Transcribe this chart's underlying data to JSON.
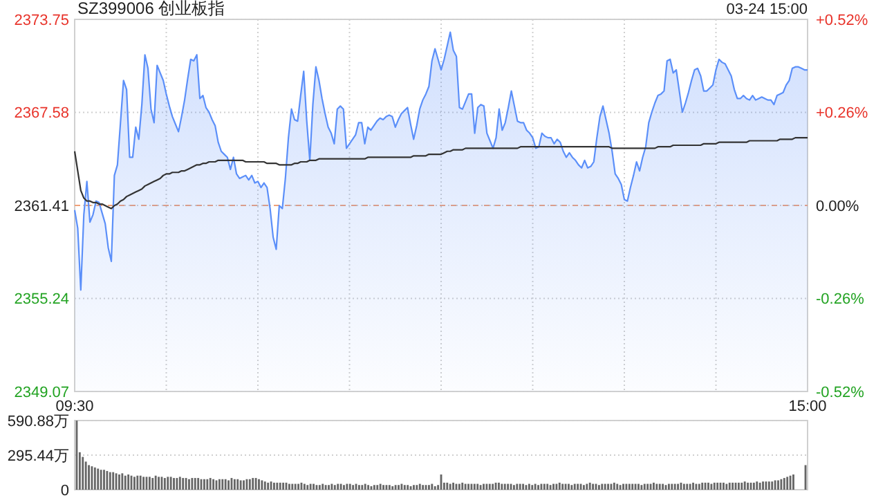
{
  "chart_data": [
    {
      "type": "area",
      "title": "SZ399006 创业板指",
      "annotations": [
        "03-24 15:00"
      ],
      "categories": [
        "09:30",
        null,
        null,
        null,
        null,
        null,
        null,
        null,
        null,
        null,
        null,
        null,
        null,
        null,
        null,
        null,
        null,
        null,
        null,
        null,
        null,
        null,
        null,
        null,
        null,
        null,
        null,
        null,
        null,
        null,
        null,
        null,
        null,
        null,
        null,
        null,
        null,
        null,
        null,
        null,
        null,
        null,
        null,
        null,
        null,
        null,
        null,
        null,
        null,
        null,
        null,
        null,
        null,
        null,
        null,
        null,
        null,
        null,
        null,
        null,
        null,
        null,
        null,
        null,
        null,
        null,
        null,
        null,
        null,
        null,
        null,
        null,
        null,
        null,
        null,
        null,
        null,
        null,
        null,
        null,
        null,
        null,
        null,
        null,
        null,
        null,
        null,
        null,
        null,
        null,
        null,
        null,
        null,
        null,
        null,
        null,
        null,
        null,
        null,
        null,
        null,
        null,
        null,
        null,
        null,
        null,
        null,
        null,
        null,
        null,
        null,
        null,
        null,
        null,
        null,
        null,
        null,
        null,
        null,
        null,
        null,
        null,
        null,
        null,
        null,
        null,
        null,
        null,
        null,
        null,
        null,
        null,
        null,
        null,
        null,
        null,
        null,
        null,
        null,
        null,
        null,
        null,
        null,
        null,
        null,
        null,
        null,
        null,
        null,
        null,
        null,
        null,
        null,
        null,
        null,
        null,
        null,
        null,
        null,
        null,
        null,
        null,
        null,
        null,
        null,
        null,
        null,
        null,
        null,
        null,
        null,
        null,
        null,
        null,
        null,
        null,
        null,
        null,
        null,
        null,
        null,
        null,
        null,
        null,
        null,
        null,
        null,
        null,
        null,
        null,
        null,
        null,
        null,
        null,
        null,
        null,
        null,
        null,
        null,
        null,
        null,
        null,
        null,
        null,
        null,
        null,
        null,
        null,
        null,
        null,
        null,
        null,
        null,
        null,
        null,
        null,
        null,
        null,
        null,
        null,
        null,
        null,
        null,
        null,
        null,
        null,
        null,
        null,
        null,
        null,
        null,
        null,
        null,
        null,
        null,
        null,
        null,
        null,
        null,
        null,
        "15:00"
      ],
      "ylim": [
        2349.07,
        2373.75
      ],
      "yticks": [
        2349.07,
        2355.24,
        2361.41,
        2367.58,
        2373.75
      ],
      "y2lim": [
        -0.52,
        0.52
      ],
      "y2ticks": [
        {
          "value": -0.52,
          "label": "-0.52%"
        },
        {
          "value": -0.26,
          "label": "-0.26%"
        },
        {
          "value": 0,
          "label": "0.00%"
        },
        {
          "value": 0.26,
          "label": "+0.26%"
        },
        {
          "value": 0.52,
          "label": "+0.52%"
        }
      ],
      "grid": true,
      "ref_lines": [
        {
          "axis": "y",
          "value": 2361.41,
          "color": "#f0a078",
          "line_style": "dashed"
        }
      ],
      "series": [
        {
          "type": "area",
          "color": "#5b8ff9",
          "values": [
            2361.1,
            2359.9,
            2355.8,
            2360.8,
            2363.0,
            2360.3,
            2360.8,
            2361.7,
            2361.6,
            2360.9,
            2360.2,
            2358.6,
            2357.7,
            2363.4,
            2364.1,
            2366.9,
            2369.7,
            2369.1,
            2364.6,
            2364.6,
            2366.6,
            2365.8,
            2368.1,
            2371.4,
            2370.5,
            2367.8,
            2366.9,
            2370.7,
            2370.2,
            2369.7,
            2368.8,
            2368.0,
            2367.3,
            2366.8,
            2366.3,
            2367.3,
            2368.4,
            2369.8,
            2371.1,
            2371.0,
            2371.4,
            2368.5,
            2368.7,
            2367.9,
            2367.6,
            2367.1,
            2366.7,
            2365.6,
            2365.0,
            2364.8,
            2364.6,
            2363.8,
            2364.6,
            2363.5,
            2363.2,
            2363.3,
            2363.4,
            2363.1,
            2363.4,
            2362.9,
            2363.0,
            2362.6,
            2362.9,
            2362.6,
            2361.2,
            2359.3,
            2358.5,
            2361.4,
            2361.2,
            2363.2,
            2365.9,
            2367.8,
            2367.1,
            2367.0,
            2368.7,
            2370.3,
            2367.0,
            2364.4,
            2368.1,
            2370.6,
            2369.7,
            2368.5,
            2367.5,
            2366.6,
            2366.2,
            2365.5,
            2367.8,
            2368.0,
            2367.8,
            2365.2,
            2365.5,
            2365.8,
            2366.1,
            2366.9,
            2366.9,
            2365.5,
            2366.6,
            2366.4,
            2366.7,
            2367.0,
            2367.2,
            2367.1,
            2367.3,
            2367.4,
            2367.3,
            2366.6,
            2367.1,
            2367.5,
            2367.7,
            2367.9,
            2366.8,
            2365.8,
            2366.7,
            2367.8,
            2368.4,
            2368.8,
            2369.3,
            2371.0,
            2371.8,
            2371.1,
            2370.4,
            2371.1,
            2372.0,
            2372.9,
            2371.7,
            2371.3,
            2367.9,
            2367.8,
            2368.3,
            2368.8,
            2368.8,
            2366.2,
            2367.9,
            2368.1,
            2368.0,
            2366.2,
            2365.7,
            2365.2,
            2365.9,
            2367.8,
            2366.4,
            2366.9,
            2367.9,
            2369.0,
            2368.0,
            2367.0,
            2366.9,
            2366.9,
            2366.4,
            2366.2,
            2365.9,
            2365.2,
            2365.3,
            2366.2,
            2366.0,
            2365.9,
            2365.9,
            2365.5,
            2365.8,
            2365.6,
            2365.0,
            2364.6,
            2364.9,
            2364.6,
            2364.4,
            2364.1,
            2363.9,
            2364.4,
            2363.9,
            2364.0,
            2364.3,
            2365.9,
            2367.3,
            2368.0,
            2367.1,
            2366.2,
            2365.0,
            2363.5,
            2363.2,
            2362.8,
            2361.8,
            2361.7,
            2362.6,
            2363.4,
            2364.3,
            2363.7,
            2364.6,
            2365.3,
            2366.9,
            2367.6,
            2368.2,
            2368.7,
            2368.8,
            2369.0,
            2371.0,
            2371.1,
            2370.2,
            2370.4,
            2369.0,
            2367.6,
            2368.2,
            2368.9,
            2369.7,
            2370.4,
            2370.5,
            2370.0,
            2369.0,
            2369.0,
            2369.2,
            2369.4,
            2370.4,
            2371.1,
            2370.9,
            2370.8,
            2370.4,
            2370.0,
            2369.1,
            2368.5,
            2368.5,
            2368.7,
            2368.5,
            2368.4,
            2368.7,
            2368.4,
            2368.5,
            2368.6,
            2368.5,
            2368.4,
            2368.4,
            2368.1,
            2368.7,
            2368.8,
            2368.9,
            2369.4,
            2369.7,
            2370.5,
            2370.6,
            2370.6,
            2370.5,
            2370.4,
            2370.4
          ]
        },
        {
          "type": "line",
          "color": "#333333",
          "values": [
            2365.0,
            2363.7,
            2362.4,
            2361.9,
            2361.7,
            2361.7,
            2361.6,
            2361.6,
            2361.5,
            2361.5,
            2361.4,
            2361.3,
            2361.2,
            2361.4,
            2361.5,
            2361.7,
            2361.8,
            2362.0,
            2362.1,
            2362.2,
            2362.3,
            2362.4,
            2362.5,
            2362.7,
            2362.8,
            2362.9,
            2363.0,
            2363.1,
            2363.2,
            2363.4,
            2363.5,
            2363.5,
            2363.6,
            2363.6,
            2363.6,
            2363.7,
            2363.7,
            2363.8,
            2363.9,
            2364.0,
            2364.1,
            2364.1,
            2364.2,
            2364.2,
            2364.3,
            2364.3,
            2364.3,
            2364.4,
            2364.4,
            2364.4,
            2364.4,
            2364.4,
            2364.4,
            2364.4,
            2364.4,
            2364.4,
            2364.3,
            2364.3,
            2364.3,
            2364.3,
            2364.3,
            2364.3,
            2364.3,
            2364.2,
            2364.2,
            2364.2,
            2364.2,
            2364.1,
            2364.1,
            2364.1,
            2364.1,
            2364.1,
            2364.2,
            2364.2,
            2364.3,
            2364.3,
            2364.3,
            2364.4,
            2364.4,
            2364.4,
            2364.5,
            2364.5,
            2364.5,
            2364.5,
            2364.5,
            2364.5,
            2364.5,
            2364.5,
            2364.5,
            2364.5,
            2364.5,
            2364.5,
            2364.5,
            2364.5,
            2364.5,
            2364.5,
            2364.6,
            2364.6,
            2364.6,
            2364.6,
            2364.6,
            2364.6,
            2364.6,
            2364.6,
            2364.6,
            2364.6,
            2364.6,
            2364.6,
            2364.6,
            2364.6,
            2364.6,
            2364.7,
            2364.7,
            2364.7,
            2364.7,
            2364.7,
            2364.8,
            2364.8,
            2364.8,
            2364.8,
            2364.8,
            2364.9,
            2365.0,
            2365.0,
            2365.1,
            2365.1,
            2365.1,
            2365.1,
            2365.2,
            2365.2,
            2365.2,
            2365.2,
            2365.2,
            2365.2,
            2365.2,
            2365.2,
            2365.2,
            2365.2,
            2365.2,
            2365.2,
            2365.2,
            2365.2,
            2365.2,
            2365.2,
            2365.2,
            2365.2,
            2365.3,
            2365.3,
            2365.3,
            2365.3,
            2365.3,
            2365.3,
            2365.3,
            2365.3,
            2365.3,
            2365.3,
            2365.3,
            2365.3,
            2365.3,
            2365.3,
            2365.3,
            2365.3,
            2365.3,
            2365.3,
            2365.3,
            2365.3,
            2365.3,
            2365.3,
            2365.3,
            2365.3,
            2365.3,
            2365.3,
            2365.3,
            2365.3,
            2365.3,
            2365.3,
            2365.2,
            2365.2,
            2365.2,
            2365.2,
            2365.2,
            2365.2,
            2365.2,
            2365.2,
            2365.2,
            2365.2,
            2365.2,
            2365.2,
            2365.2,
            2365.2,
            2365.2,
            2365.3,
            2365.3,
            2365.3,
            2365.3,
            2365.3,
            2365.4,
            2365.4,
            2365.4,
            2365.4,
            2365.4,
            2365.4,
            2365.4,
            2365.4,
            2365.4,
            2365.4,
            2365.5,
            2365.5,
            2365.5,
            2365.5,
            2365.5,
            2365.6,
            2365.6,
            2365.6,
            2365.6,
            2365.6,
            2365.6,
            2365.6,
            2365.6,
            2365.6,
            2365.6,
            2365.7,
            2365.7,
            2365.7,
            2365.7,
            2365.7,
            2365.7,
            2365.7,
            2365.7,
            2365.7,
            2365.7,
            2365.8,
            2365.8,
            2365.8,
            2365.8,
            2365.8,
            2365.9,
            2365.9,
            2365.9,
            2365.9,
            2365.9
          ]
        }
      ]
    },
    {
      "type": "bar",
      "color": "#666666",
      "tick_labels": "y",
      "grid": "y",
      "ylim": [
        0,
        590.88
      ],
      "yticks": [
        0,
        {
          "value": 295.44,
          "label": "295.44万"
        },
        {
          "value": 590.88,
          "label": "590.88万"
        }
      ],
      "categories": [
        null,
        null,
        null,
        null,
        null,
        null,
        null,
        null,
        null,
        null,
        null,
        null,
        null,
        null,
        null,
        null,
        null,
        null,
        null,
        null,
        null,
        null,
        null,
        null,
        null,
        null,
        null,
        null,
        null,
        null,
        null,
        null,
        null,
        null,
        null,
        null,
        null,
        null,
        null,
        null,
        null,
        null,
        null,
        null,
        null,
        null,
        null,
        null,
        null,
        null,
        null,
        null,
        null,
        null,
        null,
        null,
        null,
        null,
        null,
        null,
        null,
        null,
        null,
        null,
        null,
        null,
        null,
        null,
        null,
        null,
        null,
        null,
        null,
        null,
        null,
        null,
        null,
        null,
        null,
        null,
        null,
        null,
        null,
        null,
        null,
        null,
        null,
        null,
        null,
        null,
        null,
        null,
        null,
        null,
        null,
        null,
        null,
        null,
        null,
        null,
        null,
        null,
        null,
        null,
        null,
        null,
        null,
        null,
        null,
        null,
        null,
        null,
        null,
        null,
        null,
        null,
        null,
        null,
        null,
        null,
        null,
        null,
        null,
        null,
        null,
        null,
        null,
        null,
        null,
        null,
        null,
        null,
        null,
        null,
        null,
        null,
        null,
        null,
        null,
        null,
        null,
        null,
        null,
        null,
        null,
        null,
        null,
        null,
        null,
        null,
        null,
        null,
        null,
        null,
        null,
        null,
        null,
        null,
        null,
        null,
        null,
        null,
        null,
        null,
        null,
        null,
        null,
        null,
        null,
        null,
        null,
        null,
        null,
        null,
        null,
        null,
        null,
        null,
        null,
        null,
        null,
        null,
        null,
        null,
        null,
        null,
        null,
        null,
        null,
        null,
        null,
        null,
        null,
        null,
        null,
        null,
        null,
        null,
        null,
        null,
        null,
        null,
        null,
        null,
        null,
        null,
        null,
        null,
        null,
        null,
        null,
        null,
        null,
        null,
        null,
        null,
        null,
        null,
        null,
        null,
        null,
        null,
        null,
        null,
        null,
        null,
        null,
        null,
        null,
        null,
        null,
        null,
        null,
        null,
        null,
        null,
        null,
        null,
        null,
        null,
        null
      ],
      "values": [
        590,
        320,
        280,
        240,
        210,
        200,
        190,
        180,
        170,
        170,
        160,
        150,
        150,
        140,
        130,
        140,
        120,
        130,
        120,
        110,
        120,
        120,
        110,
        110,
        110,
        100,
        120,
        110,
        110,
        100,
        110,
        110,
        100,
        100,
        110,
        100,
        100,
        90,
        100,
        100,
        100,
        90,
        90,
        90,
        100,
        90,
        80,
        90,
        90,
        90,
        80,
        100,
        90,
        90,
        80,
        80,
        90,
        90,
        100,
        100,
        90,
        80,
        70,
        60,
        70,
        60,
        60,
        60,
        60,
        60,
        50,
        50,
        50,
        50,
        60,
        50,
        40,
        50,
        50,
        40,
        40,
        50,
        40,
        40,
        50,
        40,
        50,
        50,
        40,
        50,
        50,
        40,
        50,
        40,
        40,
        50,
        40,
        30,
        40,
        40,
        50,
        40,
        40,
        40,
        30,
        40,
        40,
        50,
        40,
        40,
        30,
        40,
        40,
        50,
        40,
        40,
        40,
        50,
        30,
        40,
        130,
        60,
        60,
        50,
        60,
        50,
        50,
        60,
        50,
        50,
        50,
        50,
        50,
        40,
        50,
        50,
        50,
        50,
        60,
        60,
        50,
        50,
        50,
        50,
        40,
        50,
        50,
        50,
        40,
        50,
        40,
        50,
        40,
        50,
        50,
        50,
        40,
        50,
        50,
        60,
        50,
        50,
        50,
        40,
        50,
        50,
        50,
        40,
        50,
        60,
        50,
        50,
        40,
        50,
        50,
        50,
        50,
        60,
        50,
        40,
        50,
        50,
        50,
        50,
        50,
        50,
        40,
        50,
        50,
        50,
        60,
        50,
        50,
        50,
        40,
        50,
        50,
        50,
        50,
        60,
        50,
        50,
        50,
        60,
        50,
        50,
        60,
        60,
        60,
        50,
        60,
        60,
        60,
        60,
        50,
        60,
        60,
        60,
        60,
        60,
        70,
        60,
        60,
        60,
        70,
        60,
        70,
        70,
        70,
        70,
        80,
        80,
        90,
        100,
        110,
        120,
        130,
        0,
        0,
        0,
        210
      ]
    }
  ]
}
